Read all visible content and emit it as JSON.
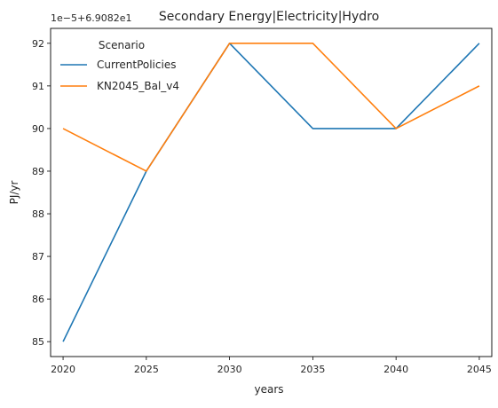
{
  "chart_data": {
    "type": "line",
    "title": "Secondary Energy|Electricity|Hydro",
    "xlabel": "years",
    "ylabel": "PJ/yr",
    "offset_label": "1e−5+6.9082e1",
    "x": [
      2020,
      2025,
      2030,
      2035,
      2040,
      2045
    ],
    "xlim": [
      2019.25,
      2045.75
    ],
    "ylim": [
      84.65,
      92.35
    ],
    "yticks": [
      85,
      86,
      87,
      88,
      89,
      90,
      91,
      92
    ],
    "xticks": [
      2020,
      2025,
      2030,
      2035,
      2040,
      2045
    ],
    "grid": false,
    "legend": {
      "title": "Scenario",
      "placement": "top-left"
    },
    "series": [
      {
        "name": "CurrentPolicies",
        "color": "#1f77b4",
        "values": [
          85,
          89,
          92,
          90,
          90,
          92
        ]
      },
      {
        "name": "KN2045_Bal_v4",
        "color": "#ff7f0e",
        "values": [
          90,
          89,
          92,
          92,
          90,
          91
        ]
      }
    ]
  }
}
